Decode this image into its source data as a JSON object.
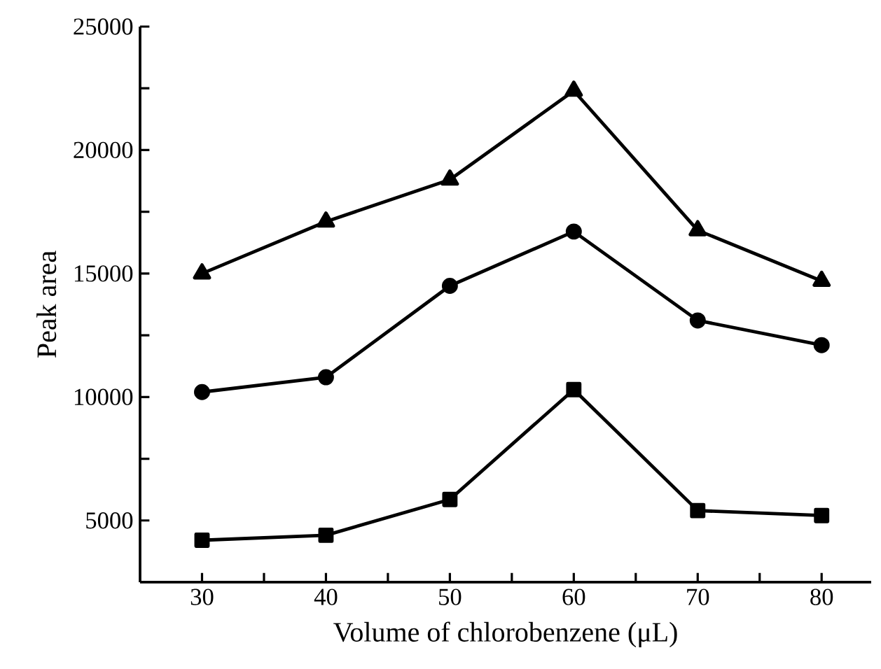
{
  "chart_data": {
    "type": "line",
    "xlabel": "Volume of chlorobenzene (μL)",
    "ylabel": "Peak area",
    "x": [
      30,
      40,
      50,
      60,
      70,
      80
    ],
    "series": [
      {
        "color": "#000000",
        "marker": "triangle",
        "values": [
          15000,
          17100,
          18800,
          22400,
          16750,
          14700
        ]
      },
      {
        "color": "#000000",
        "marker": "circle",
        "values": [
          10200,
          10800,
          14500,
          16700,
          13100,
          12100
        ]
      },
      {
        "color": "#000000",
        "marker": "square",
        "values": [
          4200,
          4400,
          5850,
          10300,
          5400,
          5200
        ]
      }
    ],
    "line_style": "solid",
    "xlim": [
      25,
      84
    ],
    "ylim": [
      2500,
      25000
    ],
    "xticks": [
      30,
      {
        "value": 35,
        "label": null
      },
      40,
      {
        "value": 45,
        "label": null
      },
      50,
      {
        "value": 55,
        "label": null
      },
      60,
      {
        "value": 65,
        "label": null
      },
      70,
      {
        "value": 75,
        "label": null
      },
      80
    ],
    "yticks": [
      5000,
      {
        "value": 7500,
        "label": null
      },
      10000,
      {
        "value": 12500,
        "label": null
      },
      15000,
      {
        "value": 17500,
        "label": null
      },
      20000,
      {
        "value": 22500,
        "label": null
      },
      25000
    ]
  }
}
